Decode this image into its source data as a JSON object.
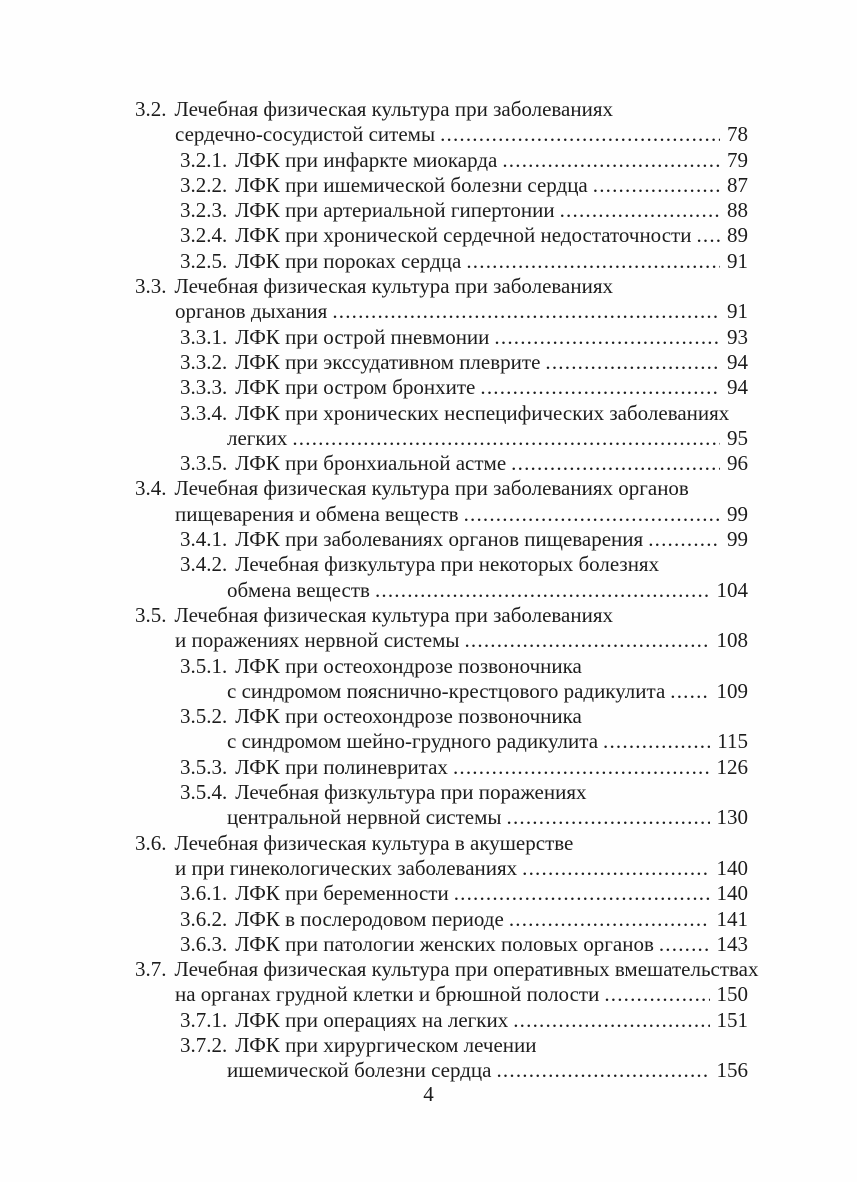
{
  "colors": {
    "ink": "#1c1c1c",
    "paper": "#fefefe"
  },
  "folio": "4",
  "toc": {
    "entries": [
      {
        "num": "3.2.",
        "level": 1,
        "lines": [
          "Лечебная физическая культура при заболеваниях",
          "сердечно-сосудистой ситемы"
        ],
        "page": "78"
      },
      {
        "num": "3.2.1.",
        "level": 2,
        "lines": [
          "ЛФК при инфаркте миокарда"
        ],
        "page": "79"
      },
      {
        "num": "3.2.2.",
        "level": 2,
        "lines": [
          "ЛФК при ишемической болезни сердца"
        ],
        "page": "87"
      },
      {
        "num": "3.2.3.",
        "level": 2,
        "lines": [
          "ЛФК при артериальной гипертонии"
        ],
        "page": "88"
      },
      {
        "num": "3.2.4.",
        "level": 2,
        "lines": [
          "ЛФК при хронической сердечной недостаточности"
        ],
        "page": "89"
      },
      {
        "num": "3.2.5.",
        "level": 2,
        "lines": [
          "ЛФК при пороках сердца"
        ],
        "page": "91"
      },
      {
        "num": "3.3.",
        "level": 1,
        "lines": [
          "Лечебная физическая культура при заболеваниях",
          "органов дыхания"
        ],
        "page": "91"
      },
      {
        "num": "3.3.1.",
        "level": 2,
        "lines": [
          "ЛФК при острой пневмонии"
        ],
        "page": "93"
      },
      {
        "num": "3.3.2.",
        "level": 2,
        "lines": [
          "ЛФК при экссудативном плеврите"
        ],
        "page": "94"
      },
      {
        "num": "3.3.3.",
        "level": 2,
        "lines": [
          "ЛФК при остром бронхите"
        ],
        "page": "94"
      },
      {
        "num": "3.3.4.",
        "level": 2,
        "lines": [
          "ЛФК при хронических неспецифических заболеваниях",
          "легких"
        ],
        "page": "95"
      },
      {
        "num": "3.3.5.",
        "level": 2,
        "lines": [
          "ЛФК при бронхиальной астме"
        ],
        "page": "96"
      },
      {
        "num": "3.4.",
        "level": 1,
        "lines": [
          "Лечебная физическая культура при заболеваниях органов",
          "пищеварения и обмена веществ"
        ],
        "page": "99"
      },
      {
        "num": "3.4.1.",
        "level": 2,
        "lines": [
          "ЛФК при заболеваниях органов пищеварения"
        ],
        "page": "99"
      },
      {
        "num": "3.4.2.",
        "level": 2,
        "lines": [
          "Лечебная физкультура при некоторых болезнях",
          "обмена веществ"
        ],
        "page": "104"
      },
      {
        "num": "3.5.",
        "level": 1,
        "lines": [
          "Лечебная физическая культура при заболеваниях",
          "и поражениях нервной системы"
        ],
        "page": "108"
      },
      {
        "num": "3.5.1.",
        "level": 2,
        "lines": [
          "ЛФК при остеохондрозе позвоночника",
          "с синдромом пояснично-крестцового радикулита"
        ],
        "page": "109"
      },
      {
        "num": "3.5.2.",
        "level": 2,
        "lines": [
          "ЛФК при остеохондрозе позвоночника",
          "с синдромом шейно-грудного радикулита"
        ],
        "page": "115"
      },
      {
        "num": "3.5.3.",
        "level": 2,
        "lines": [
          "ЛФК при полиневритах"
        ],
        "page": "126"
      },
      {
        "num": "3.5.4.",
        "level": 2,
        "lines": [
          "Лечебная физкультура при поражениях",
          "центральной нервной системы"
        ],
        "page": "130"
      },
      {
        "num": "3.6.",
        "level": 1,
        "lines": [
          "Лечебная физическая культура в акушерстве",
          "и при гинекологических заболеваниях"
        ],
        "page": "140"
      },
      {
        "num": "3.6.1.",
        "level": 2,
        "lines": [
          "ЛФК при беременности"
        ],
        "page": "140"
      },
      {
        "num": "3.6.2.",
        "level": 2,
        "lines": [
          "ЛФК в послеродовом периоде"
        ],
        "page": "141"
      },
      {
        "num": "3.6.3.",
        "level": 2,
        "lines": [
          "ЛФК при патологии женских половых органов"
        ],
        "page": "143"
      },
      {
        "num": "3.7.",
        "level": 1,
        "lines": [
          "Лечебная физическая культура при оперативных вмешательствах",
          "на органах грудной клетки и брюшной полости"
        ],
        "page": "150"
      },
      {
        "num": "3.7.1.",
        "level": 2,
        "lines": [
          "ЛФК при операциях на легких"
        ],
        "page": "151"
      },
      {
        "num": "3.7.2.",
        "level": 2,
        "lines": [
          "ЛФК при хирургическом лечении",
          "ишемической болезни сердца"
        ],
        "page": "156"
      }
    ]
  }
}
